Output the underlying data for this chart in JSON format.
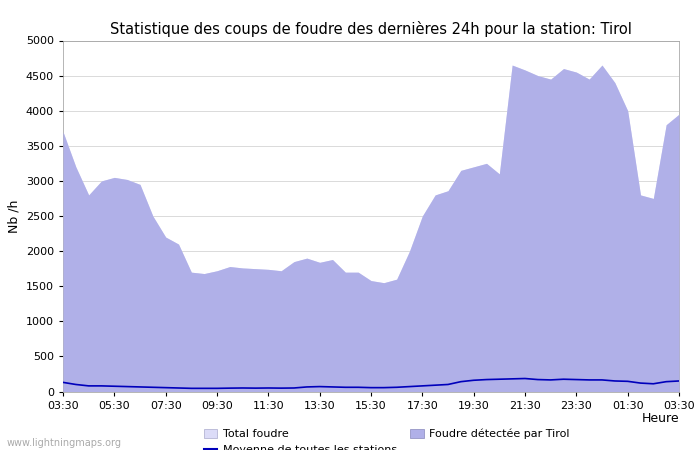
{
  "title": "Statistique des coups de foudre des dernières 24h pour la station: Tirol",
  "ylabel": "Nb /h",
  "xlabel": "Heure",
  "watermark": "www.lightningmaps.org",
  "ylim": [
    0,
    5000
  ],
  "yticks": [
    0,
    500,
    1000,
    1500,
    2000,
    2500,
    3000,
    3500,
    4000,
    4500,
    5000
  ],
  "xtick_labels": [
    "03:30",
    "05:30",
    "07:30",
    "09:30",
    "11:30",
    "13:30",
    "15:30",
    "17:30",
    "19:30",
    "21:30",
    "23:30",
    "01:30",
    "03:30"
  ],
  "background_color": "#ffffff",
  "plot_bg_color": "#ffffff",
  "grid_color": "#cccccc",
  "title_fontsize": 10.5,
  "label_fontsize": 9,
  "tick_fontsize": 8,
  "color_total_fill": "#dcdcf8",
  "color_tirol_fill": "#b0b0e8",
  "color_moyenne": "#0000bb",
  "x_values": [
    0,
    1,
    2,
    3,
    4,
    5,
    6,
    7,
    8,
    9,
    10,
    11,
    12,
    13,
    14,
    15,
    16,
    17,
    18,
    19,
    20,
    21,
    22,
    23,
    24,
    25,
    26,
    27,
    28,
    29,
    30,
    31,
    32,
    33,
    34,
    35,
    36,
    37,
    38,
    39,
    40,
    41,
    42,
    43,
    44,
    45,
    46,
    47,
    48
  ],
  "total_foudre": [
    3700,
    3200,
    2800,
    3000,
    3050,
    3020,
    2950,
    2500,
    2200,
    2100,
    1700,
    1680,
    1720,
    1780,
    1760,
    1750,
    1740,
    1720,
    1850,
    1900,
    1840,
    1880,
    1700,
    1700,
    1580,
    1550,
    1600,
    2000,
    2500,
    2800,
    2860,
    3150,
    3200,
    3250,
    3100,
    4650,
    4580,
    4500,
    4450,
    4600,
    4550,
    4450,
    4650,
    4400,
    4000,
    2800,
    2750,
    3800,
    3950
  ],
  "foudre_tirol": [
    3700,
    3200,
    2800,
    3000,
    3050,
    3020,
    2950,
    2500,
    2200,
    2100,
    1700,
    1680,
    1720,
    1780,
    1760,
    1750,
    1740,
    1720,
    1850,
    1900,
    1840,
    1880,
    1700,
    1700,
    1580,
    1550,
    1600,
    2000,
    2500,
    2800,
    2860,
    3150,
    3200,
    3250,
    3100,
    4650,
    4580,
    4500,
    4450,
    4600,
    4550,
    4450,
    4650,
    4400,
    4000,
    2800,
    2750,
    3800,
    3950
  ],
  "moyenne": [
    130,
    100,
    80,
    80,
    75,
    70,
    65,
    60,
    55,
    50,
    45,
    45,
    45,
    48,
    50,
    48,
    50,
    48,
    50,
    65,
    70,
    65,
    60,
    60,
    55,
    55,
    60,
    70,
    80,
    90,
    100,
    140,
    160,
    170,
    175,
    180,
    185,
    170,
    165,
    175,
    170,
    165,
    165,
    150,
    145,
    120,
    110,
    140,
    150
  ]
}
